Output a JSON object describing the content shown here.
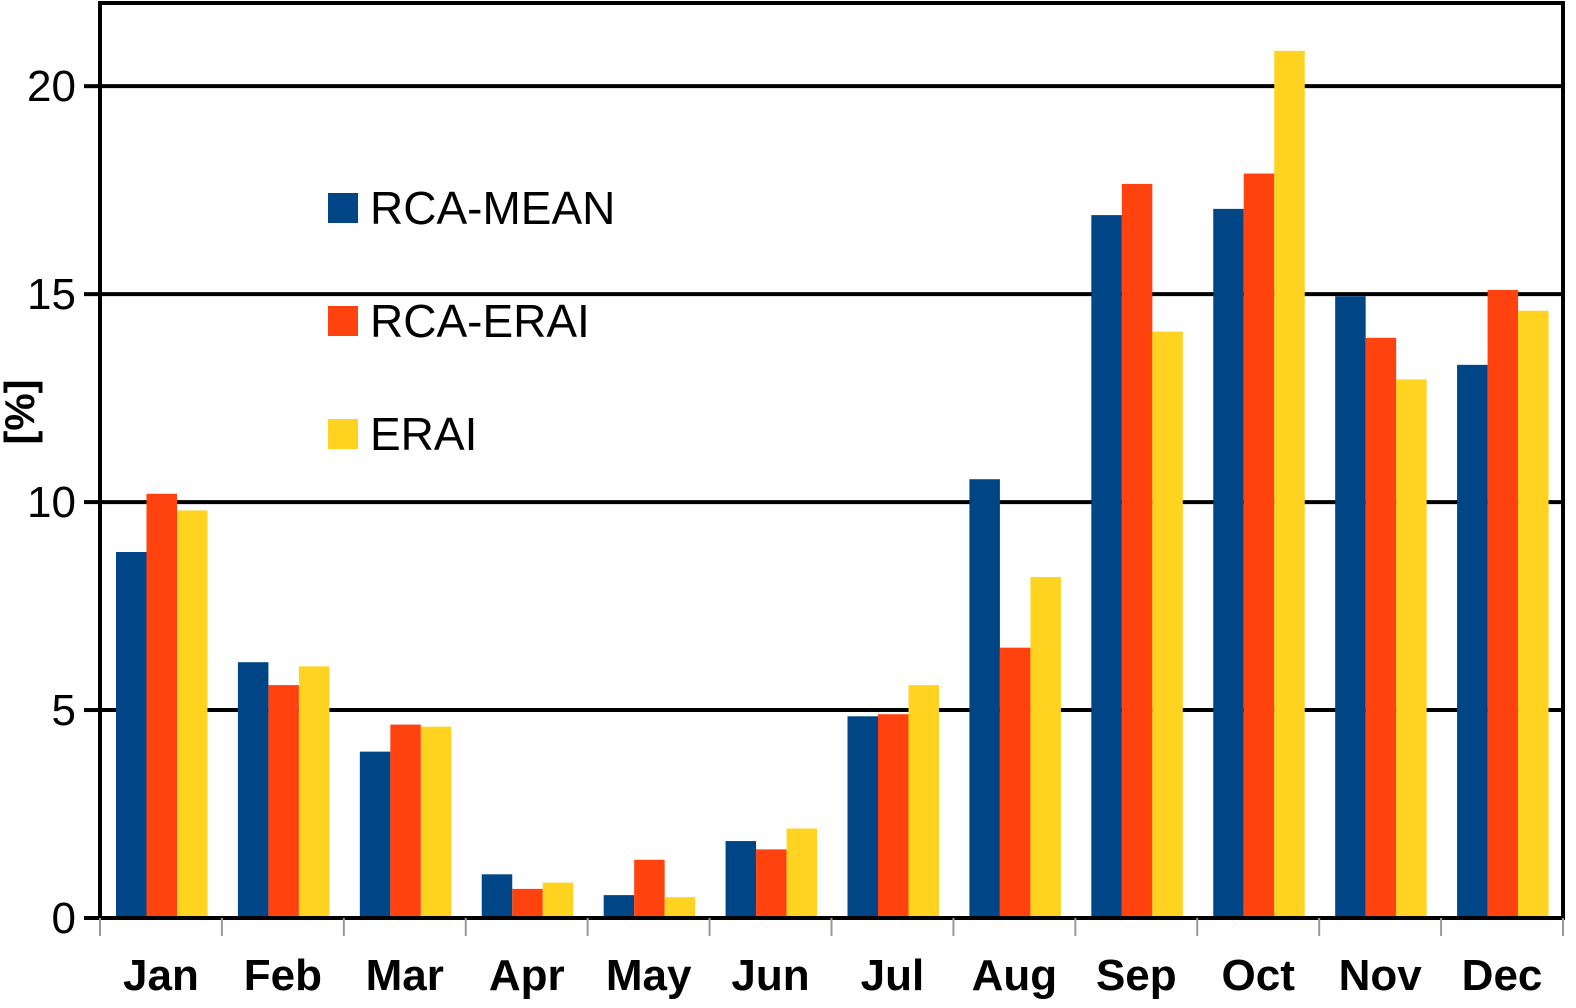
{
  "chart_data": {
    "type": "bar",
    "categories": [
      "Jan",
      "Feb",
      "Mar",
      "Apr",
      "May",
      "Jun",
      "Jul",
      "Aug",
      "Sep",
      "Oct",
      "Nov",
      "Dec"
    ],
    "series": [
      {
        "name": "RCA-MEAN",
        "color": "#004586",
        "values": [
          8.8,
          6.15,
          4.0,
          1.05,
          0.55,
          1.85,
          4.85,
          10.55,
          16.9,
          17.05,
          14.95,
          13.3
        ]
      },
      {
        "name": "RCA-ERAI",
        "color": "#ff420e",
        "values": [
          10.2,
          5.6,
          4.65,
          0.7,
          1.4,
          1.65,
          4.9,
          6.5,
          17.65,
          17.9,
          13.95,
          15.1
        ]
      },
      {
        "name": "ERAI",
        "color": "#ffd320",
        "values": [
          9.8,
          6.05,
          4.6,
          0.85,
          0.5,
          2.15,
          5.6,
          8.2,
          14.1,
          20.85,
          12.95,
          14.6
        ]
      }
    ],
    "title": "",
    "xlabel": "",
    "ylabel": "[%]",
    "ylim": [
      0,
      22
    ],
    "yticks": [
      0,
      5,
      10,
      15,
      20
    ],
    "grid": true,
    "legend_placement": "upper-left inside plot"
  }
}
